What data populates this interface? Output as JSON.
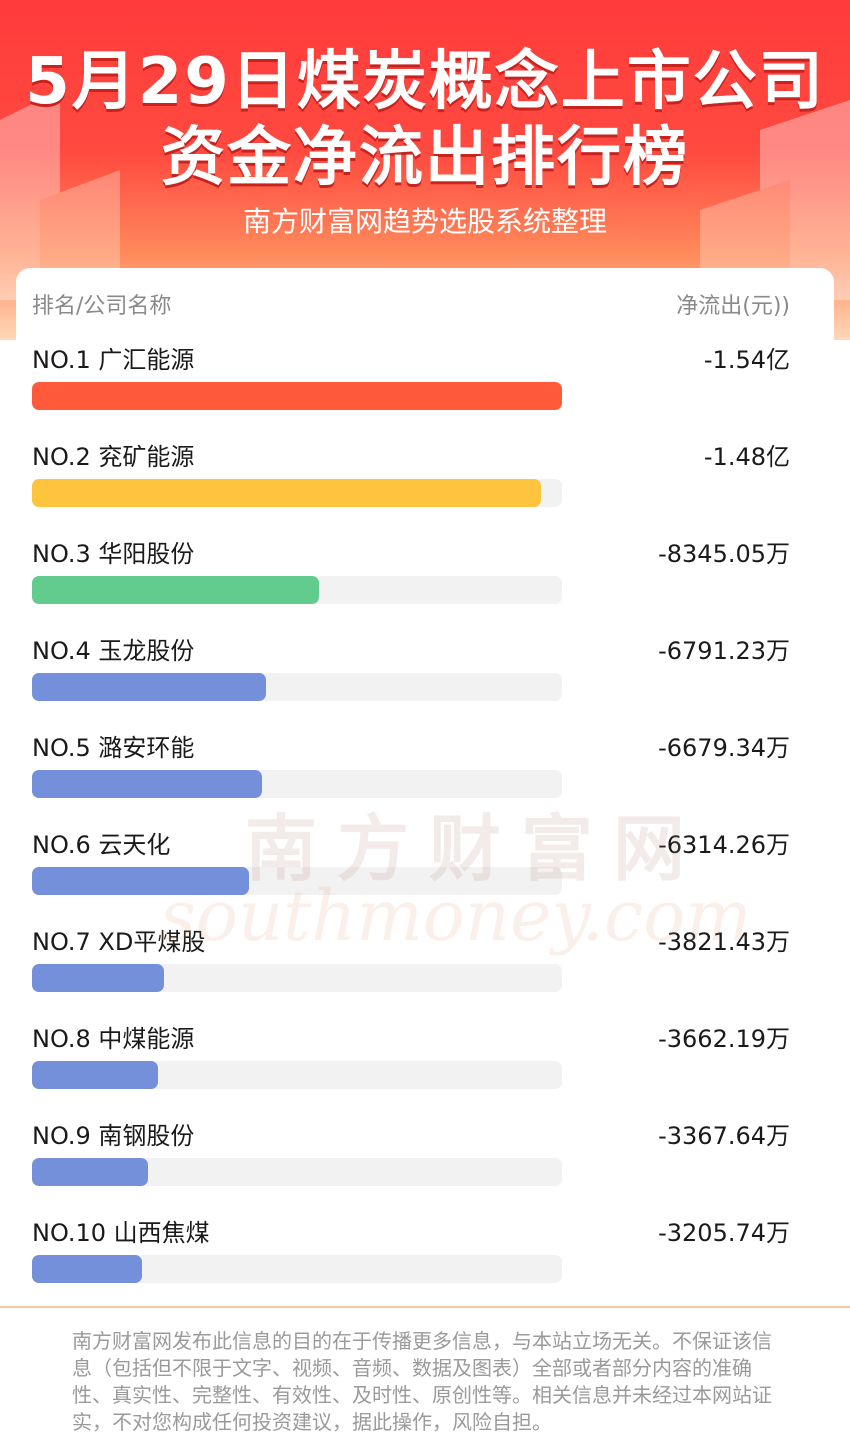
{
  "header": {
    "title_line1": "5月29日煤炭概念上市公司",
    "title_line2": "资金净流出排行榜",
    "subtitle": "南方财富网趋势选股系统整理"
  },
  "table": {
    "col_left": "排名/公司名称",
    "col_right": "净流出(元))"
  },
  "chart_data": {
    "type": "bar",
    "orientation": "horizontal",
    "unit": "元",
    "categories": [
      "NO.1 广汇能源",
      "NO.2 兖矿能源",
      "NO.3 华阳股份",
      "NO.4 玉龙股份",
      "NO.5 潞安环能",
      "NO.6 云天化",
      "NO.7 XD平煤股",
      "NO.8 中煤能源",
      "NO.9 南钢股份",
      "NO.10 山西焦煤"
    ],
    "labels": [
      "-1.54亿",
      "-1.48亿",
      "-8345.05万",
      "-6791.23万",
      "-6679.34万",
      "-6314.26万",
      "-3821.43万",
      "-3662.19万",
      "-3367.64万",
      "-3205.74万"
    ],
    "values": [
      -154000000,
      -148000000,
      -83450500,
      -67912300,
      -66793400,
      -63142600,
      -38214300,
      -36621900,
      -33676400,
      -32057400
    ],
    "colors": [
      "#ff5a3c",
      "#ffc43d",
      "#62cc8e",
      "#7590db",
      "#7590db",
      "#7590db",
      "#7590db",
      "#7590db",
      "#7590db",
      "#7590db"
    ],
    "track_color": "#f2f2f2"
  },
  "watermark": {
    "cn": "南方财富网",
    "en": "southmoney.com"
  },
  "disclaimer": "南方财富网发布此信息的目的在于传播更多信息，与本站立场无关。不保证该信息（包括但不限于文字、视频、音频、数据及图表）全部或者部分内容的准确性、真实性、完整性、有效性、及时性、原创性等。相关信息并未经过本网站证实，不对您构成任何投资建议，据此操作，风险自担。"
}
